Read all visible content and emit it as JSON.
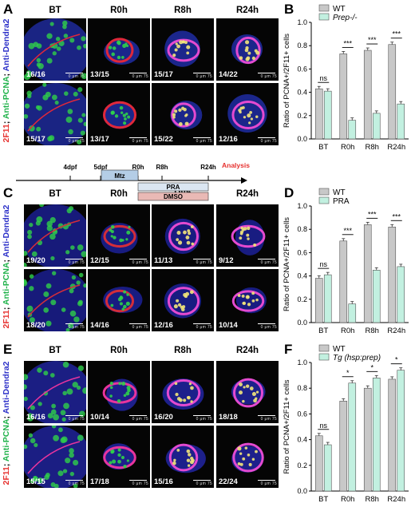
{
  "panels": {
    "A": "A",
    "B": "B",
    "C": "C",
    "D": "D",
    "E": "E",
    "F": "F"
  },
  "columns": [
    "BT",
    "R0h",
    "R8h",
    "R24h"
  ],
  "scale": {
    "zero": "0",
    "unit": "μm",
    "value": "75"
  },
  "stain": {
    "red": "2F11",
    "green": "Anti-PCNA",
    "blue": "Anti-Dendra2",
    "sep": ";"
  },
  "sectionA": {
    "rows": [
      {
        "label": "WT",
        "italic": false,
        "counts": [
          "16/16",
          "13/15",
          "15/17",
          "14/22"
        ]
      },
      {
        "label": "Prep-/-",
        "italic": true,
        "counts": [
          "15/17",
          "13/17",
          "15/22",
          "12/16"
        ]
      }
    ]
  },
  "sectionC": {
    "rows": [
      {
        "label": "DMSO",
        "italic": false,
        "counts": [
          "19/20",
          "12/15",
          "11/13",
          "9/12"
        ]
      },
      {
        "label": "PRA",
        "italic": false,
        "counts": [
          "18/20",
          "14/16",
          "12/16",
          "10/14"
        ]
      }
    ]
  },
  "sectionE": {
    "rows": [
      {
        "label": "WT",
        "italic": false,
        "counts": [
          "16/16",
          "10/14",
          "16/20",
          "18/18"
        ]
      },
      {
        "label": "Tg (hsp:prep)",
        "italic": true,
        "counts": [
          "15/15",
          "17/18",
          "15/16",
          "22/24"
        ]
      }
    ]
  },
  "timeline": {
    "ticks": [
      "4dpf",
      "5dpf",
      "R0h",
      "R8h",
      "R24h"
    ],
    "analysis": "Analysis",
    "bars": [
      "Mtz",
      "PRA",
      "DMSO"
    ]
  },
  "colors": {
    "wt": "#c8c8c8",
    "treat": "#c2f0e0",
    "analysis": "#e6312f",
    "mtz": "#b4cde6",
    "pra": "#dbe6f2",
    "dmso": "#e9b9b5"
  },
  "chart_data": [
    {
      "type": "bar",
      "categories": [
        "BT",
        "R0h",
        "R8h",
        "R24h"
      ],
      "ylabel": "Ratio of PCNA+/2F11+ cells",
      "ylim": [
        0,
        1.0
      ],
      "yticks": [
        "0.0",
        "0.2",
        "0.4",
        "0.6",
        "0.8",
        "1.0"
      ],
      "series": [
        {
          "name": "WT",
          "values": [
            0.43,
            0.73,
            0.76,
            0.81
          ]
        },
        {
          "name": "Prep-/-",
          "values": [
            0.41,
            0.16,
            0.22,
            0.3
          ]
        }
      ],
      "significance": [
        "ns",
        "***",
        "***",
        "***"
      ]
    },
    {
      "type": "bar",
      "categories": [
        "BT",
        "R0h",
        "R8h",
        "R24h"
      ],
      "ylabel": "Ratio of PCNA+/2F11+ cells",
      "ylim": [
        0,
        1.0
      ],
      "yticks": [
        "0.0",
        "0.2",
        "0.4",
        "0.6",
        "0.8",
        "1.0"
      ],
      "series": [
        {
          "name": "WT",
          "values": [
            0.38,
            0.7,
            0.84,
            0.82
          ]
        },
        {
          "name": "PRA",
          "values": [
            0.41,
            0.16,
            0.45,
            0.48
          ]
        }
      ],
      "significance": [
        "ns",
        "***",
        "***",
        "***"
      ]
    },
    {
      "type": "bar",
      "categories": [
        "BT",
        "R0h",
        "R8h",
        "R24h"
      ],
      "ylabel": "Ratio of PCNA+/2F11+ cells",
      "ylim": [
        0,
        1.0
      ],
      "yticks": [
        "0.0",
        "0.2",
        "0.4",
        "0.6",
        "0.8",
        "1.0"
      ],
      "series": [
        {
          "name": "WT",
          "values": [
            0.43,
            0.7,
            0.8,
            0.87
          ]
        },
        {
          "name": "Tg (hsp:prep)",
          "values": [
            0.36,
            0.84,
            0.88,
            0.94
          ]
        }
      ],
      "significance": [
        "ns",
        "*",
        "*",
        "*"
      ]
    }
  ]
}
